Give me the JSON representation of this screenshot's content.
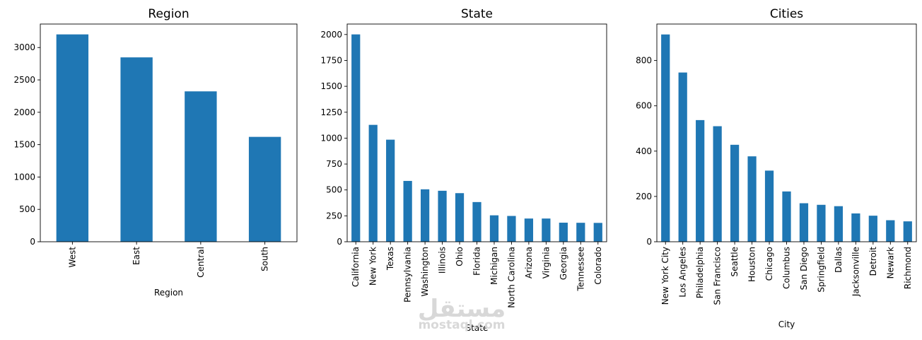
{
  "charts": [
    {
      "type": "bar",
      "title": "Region",
      "xlabel": "Region",
      "ylabel": "",
      "categories": [
        "West",
        "East",
        "Central",
        "South"
      ],
      "values": [
        3203,
        2848,
        2323,
        1620
      ],
      "ylim": [
        0,
        3363
      ],
      "yticks": [
        0,
        500,
        1000,
        1500,
        2000,
        2500,
        3000
      ],
      "color": "#1f77b4"
    },
    {
      "type": "bar",
      "title": "State",
      "xlabel": "State",
      "ylabel": "",
      "categories": [
        "California",
        "New York",
        "Texas",
        "Pennsylvania",
        "Washington",
        "Illinois",
        "Ohio",
        "Florida",
        "Michigan",
        "North Carolina",
        "Arizona",
        "Virginia",
        "Georgia",
        "Tennessee",
        "Colorado"
      ],
      "values": [
        2001,
        1128,
        985,
        587,
        506,
        492,
        469,
        383,
        255,
        249,
        224,
        224,
        184,
        183,
        182
      ],
      "ylim": [
        0,
        2101
      ],
      "yticks": [
        0,
        250,
        500,
        750,
        1000,
        1250,
        1500,
        1750,
        2000
      ],
      "color": "#1f77b4"
    },
    {
      "type": "bar",
      "title": "Cities",
      "xlabel": "City",
      "ylabel": "",
      "categories": [
        "New York City",
        "Los Angeles",
        "Philadelphia",
        "San Francisco",
        "Seattle",
        "Houston",
        "Chicago",
        "Columbus",
        "San Diego",
        "Springfield",
        "Dallas",
        "Jacksonville",
        "Detroit",
        "Newark",
        "Richmond"
      ],
      "values": [
        915,
        747,
        537,
        510,
        428,
        377,
        314,
        222,
        170,
        163,
        157,
        125,
        115,
        95,
        90
      ],
      "ylim": [
        0,
        961
      ],
      "yticks": [
        0,
        200,
        400,
        600,
        800
      ],
      "color": "#1f77b4"
    }
  ],
  "watermark": {
    "arabic": "مستقل",
    "latin": "mostaql.com"
  }
}
